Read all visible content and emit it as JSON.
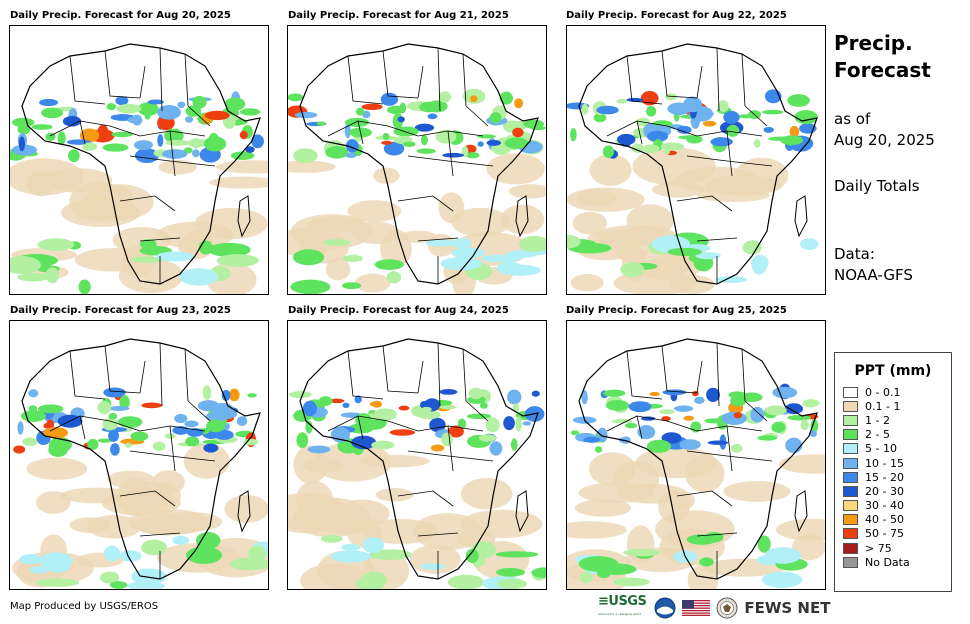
{
  "panels": [
    {
      "title": "Daily Precip. Forecast for Aug 20, 2025"
    },
    {
      "title": "Daily Precip. Forecast for Aug 21, 2025"
    },
    {
      "title": "Daily Precip. Forecast for Aug 22, 2025"
    },
    {
      "title": "Daily Precip. Forecast for Aug 23, 2025"
    },
    {
      "title": "Daily Precip. Forecast for Aug 24, 2025"
    },
    {
      "title": "Daily Precip. Forecast for Aug 25, 2025"
    }
  ],
  "side": {
    "title_line1": "Precip.",
    "title_line2": "Forecast",
    "asof_line1": "as of",
    "asof_line2": "Aug 20, 2025",
    "totals": "Daily Totals",
    "data_line1": "Data:",
    "data_line2": "NOAA-GFS"
  },
  "legend": {
    "title": "PPT (mm)",
    "items": [
      {
        "label": "0 - 0.1",
        "color": "#ffffff"
      },
      {
        "label": "0.1 - 1",
        "color": "#ecd8b6"
      },
      {
        "label": "1 - 2",
        "color": "#b4f0a2"
      },
      {
        "label": "2 - 5",
        "color": "#5ee35e"
      },
      {
        "label": "5 - 10",
        "color": "#b2f0f8"
      },
      {
        "label": "10 - 15",
        "color": "#6fb2f0"
      },
      {
        "label": "15 - 20",
        "color": "#3b87ea"
      },
      {
        "label": "20 - 30",
        "color": "#1e58d0"
      },
      {
        "label": "30 - 40",
        "color": "#fad77a"
      },
      {
        "label": "40 - 50",
        "color": "#f59a12"
      },
      {
        "label": "50 - 75",
        "color": "#ef3f10"
      },
      {
        "label": "> 75",
        "color": "#a61b1b"
      },
      {
        "label": "No Data",
        "color": "#969696"
      }
    ]
  },
  "footer": {
    "credit": "Map Produced by USGS/EROS",
    "usgs": "≡USGS",
    "usgs_tagline": "science for a changing world",
    "fews": "FEWS NET"
  }
}
